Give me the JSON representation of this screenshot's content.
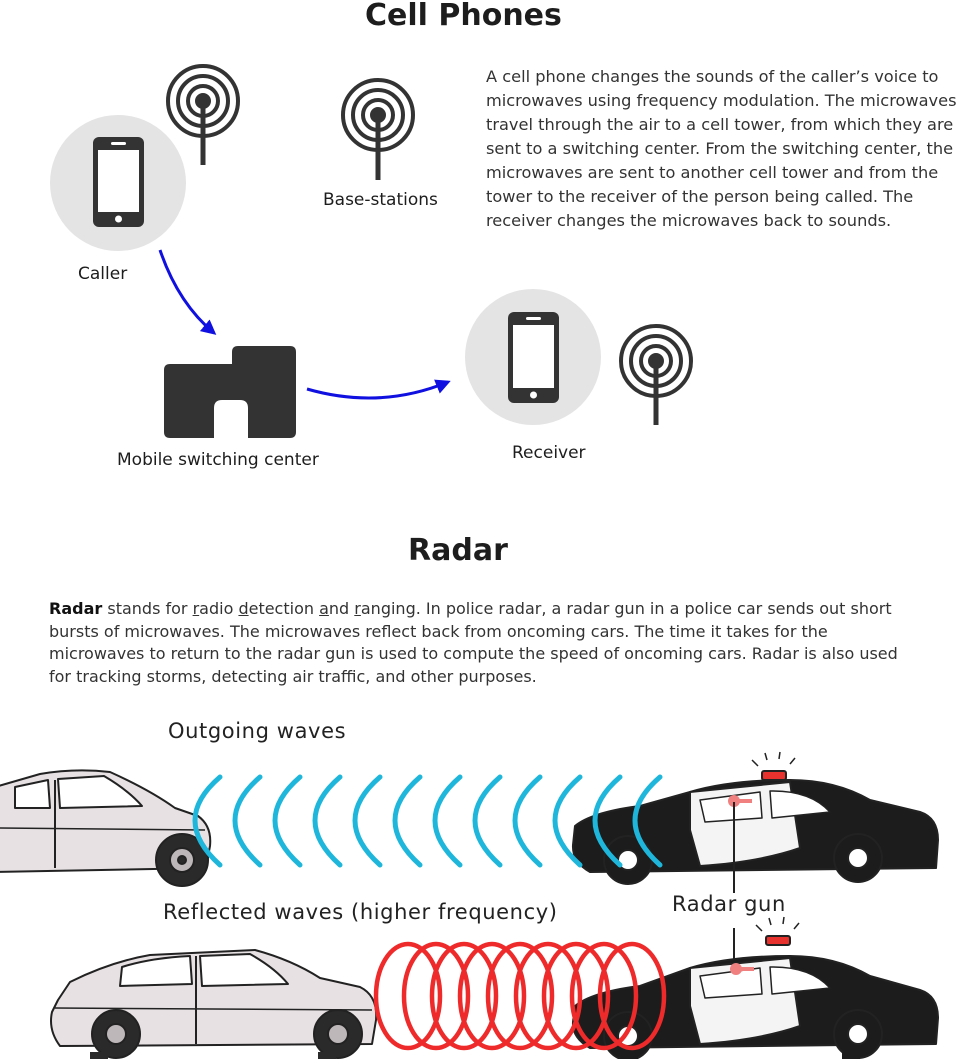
{
  "cell_section": {
    "title": "Cell Phones",
    "description": "A cell phone changes the sounds of the caller’s voice to microwaves using frequency modulation. The microwaves travel through the air to a cell tower, from which they are sent to a switching center. From the switching center, the microwaves are sent to another cell tower and from the tower to the receiver of the person being called. The receiver changes the microwaves back to sounds.",
    "labels": {
      "caller": "Caller",
      "base_stations": "Base-stations",
      "switching_center": "Mobile switching center",
      "receiver": "Receiver"
    }
  },
  "radar_section": {
    "title": "Radar",
    "term": "Radar",
    "intro_parts": [
      " stands for ",
      "r",
      "adio ",
      "d",
      "etection ",
      "a",
      "nd ",
      "r",
      "anging."
    ],
    "body": " In police radar, a radar gun in a police car sends out short bursts of microwaves. The microwaves reflect back from oncoming cars. The time it takes for the microwaves to return to the radar gun is used to compute the speed of oncoming cars. Radar is also used for tracking storms, detecting air traffic, and other purposes.",
    "labels": {
      "outgoing": "Outgoing waves",
      "reflected": "Reflected waves (higher frequency)",
      "radar_gun": "Radar gun"
    }
  },
  "colors": {
    "outgoing_wave": "#1fb6dc",
    "reflected_wave": "#ee2a2a",
    "arrow": "#1010e0",
    "icon_dark": "#333333",
    "icon_circle": "#e4e4e4",
    "car_body": "#e7e1e3",
    "police_black": "#1c1c1c",
    "siren": "#e8322e"
  }
}
